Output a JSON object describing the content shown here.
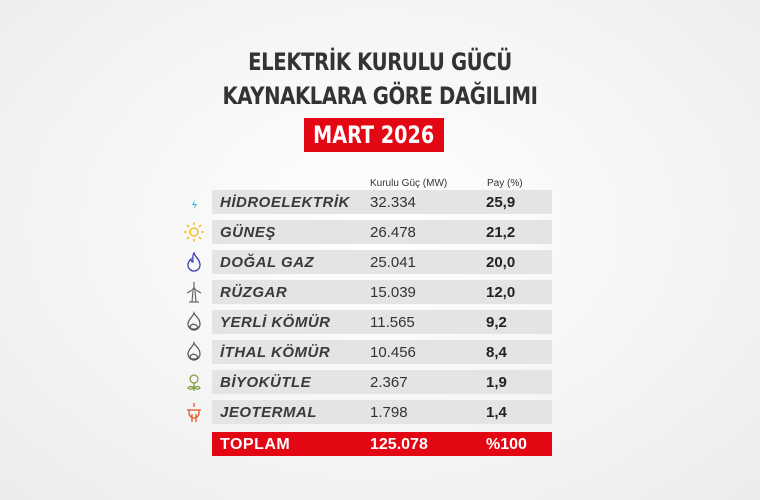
{
  "title": {
    "line1": "ELEKTRİK KURULU GÜCÜ",
    "line2": "KAYNAKLARA GÖRE DAĞILIMI",
    "period": "MART 2026"
  },
  "headers": {
    "capacity": "Kurulu Güç (MW)",
    "share": "Pay (%)"
  },
  "rows": [
    {
      "name": "HİDROELEKTRİK",
      "capacity": "32.334",
      "share": "25,9",
      "icon": "water-drop-bolt-icon",
      "color": "#2bb5d8"
    },
    {
      "name": "GÜNEŞ",
      "capacity": "26.478",
      "share": "21,2",
      "icon": "sun-icon",
      "color": "#f2b705"
    },
    {
      "name": "DOĞAL GAZ",
      "capacity": "25.041",
      "share": "20,0",
      "icon": "flame-icon",
      "color": "#3b3fb0"
    },
    {
      "name": "RÜZGAR",
      "capacity": "15.039",
      "share": "12,0",
      "icon": "wind-turbine-icon",
      "color": "#666666"
    },
    {
      "name": "YERLİ KÖMÜR",
      "capacity": "11.565",
      "share": "9,2",
      "icon": "coal-icon",
      "color": "#555555"
    },
    {
      "name": "İTHAL KÖMÜR",
      "capacity": "10.456",
      "share": "8,4",
      "icon": "coal-icon",
      "color": "#555555"
    },
    {
      "name": "BİYOKÜTLE",
      "capacity": "2.367",
      "share": "1,9",
      "icon": "biomass-bulb-icon",
      "color": "#7a9a3a"
    },
    {
      "name": "JEOTERMAL",
      "capacity": "1.798",
      "share": "1,4",
      "icon": "geothermal-icon",
      "color": "#e8562a"
    }
  ],
  "total": {
    "name": "TOPLAM",
    "capacity": "125.078",
    "share": "%100"
  },
  "colors": {
    "accent": "#e30613",
    "row_bg": "#e3e4e6"
  }
}
